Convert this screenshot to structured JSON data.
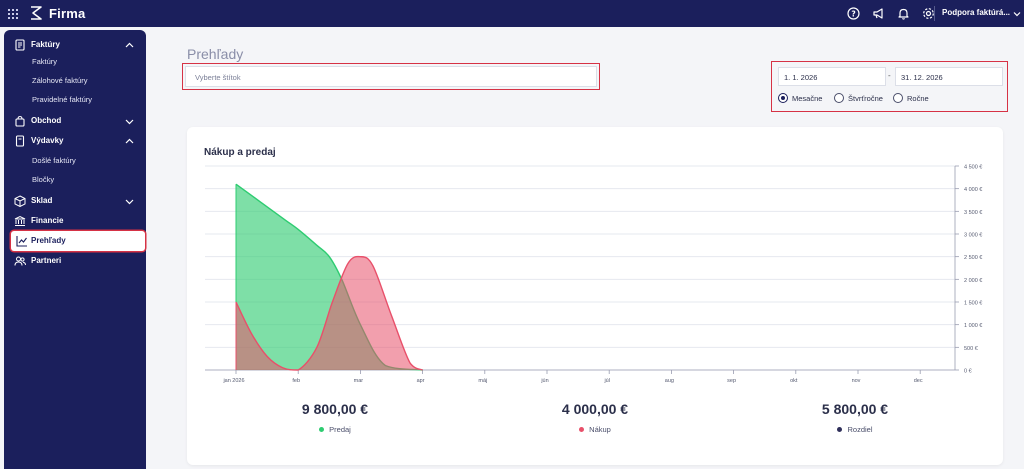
{
  "topbar": {
    "brand": "Firma",
    "org_name": "Podpora faktúrá...",
    "icons": [
      "help-icon",
      "megaphone-icon",
      "bell-icon",
      "gear-icon",
      "chevron-down-icon"
    ]
  },
  "sidebar": {
    "sections": [
      {
        "label": "Faktúry",
        "icon": "invoice-icon",
        "expanded": true,
        "items": [
          "Faktúry",
          "Zálohové faktúry",
          "Pravidelné faktúry"
        ]
      },
      {
        "label": "Obchod",
        "icon": "shopping-bag-icon",
        "expanded": false,
        "items": []
      },
      {
        "label": "Výdavky",
        "icon": "receipt-icon",
        "expanded": true,
        "items": [
          "Došlé faktúry",
          "Bločky"
        ]
      },
      {
        "label": "Sklad",
        "icon": "box-icon",
        "expanded": false,
        "items": []
      },
      {
        "label": "Financie",
        "icon": "bank-icon",
        "items": []
      },
      {
        "label": "Prehľady",
        "icon": "chart-line-icon",
        "active": true,
        "items": []
      },
      {
        "label": "Partneri",
        "icon": "people-icon",
        "items": []
      }
    ]
  },
  "main": {
    "title": "Prehľady",
    "tag_placeholder": "Vyberte štítok",
    "date_from": "1. 1. 2026",
    "date_separator": "-",
    "date_to": "31. 12. 2026",
    "periods": [
      {
        "label": "Mesačne",
        "selected": true
      },
      {
        "label": "Štvrťročne",
        "selected": false
      },
      {
        "label": "Ročne",
        "selected": false
      }
    ]
  },
  "colors": {
    "sidebar_bg": "#1b1f5c",
    "predaj": "#2ecc71",
    "nakup": "#e8506a",
    "rozdiel": "#2f2f5a",
    "highlight": "#d63245"
  },
  "chart_data": {
    "type": "area",
    "title": "Nákup a predaj",
    "categories": [
      "jan 2026",
      "feb",
      "mar",
      "apr",
      "máj",
      "jún",
      "júl",
      "aug",
      "sep",
      "okt",
      "nov",
      "dec"
    ],
    "y_ticks": [
      "4 500 €",
      "4 000 €",
      "3 500 €",
      "3 000 €",
      "2 500 €",
      "2 000 €",
      "1 500 €",
      "1 000 €",
      "500 €",
      "0 €"
    ],
    "ylim": [
      0,
      4500
    ],
    "grid": true,
    "y_axis_side": "right",
    "series": [
      {
        "name": "Predaj",
        "color": "#2ecc71",
        "x": [
          0,
          0.4,
          0.8,
          1.0,
          1.3,
          1.5,
          1.7,
          2.0,
          2.4,
          3.0
        ],
        "values": [
          4100,
          3700,
          3300,
          3100,
          2750,
          2500,
          2000,
          1000,
          100,
          0
        ]
      },
      {
        "name": "Nákup",
        "color": "#e8506a",
        "x": [
          0,
          0.25,
          0.5,
          0.75,
          1.0,
          1.3,
          1.55,
          1.8,
          2.0,
          2.2,
          2.5,
          2.8,
          3.0
        ],
        "values": [
          1500,
          800,
          300,
          50,
          0,
          500,
          1500,
          2350,
          2500,
          2300,
          1200,
          150,
          0
        ]
      }
    ]
  },
  "totals": [
    {
      "value": "9 800,00 €",
      "label": "Predaj",
      "color": "#2ecc71"
    },
    {
      "value": "4 000,00 €",
      "label": "Nákup",
      "color": "#e8506a"
    },
    {
      "value": "5 800,00 €",
      "label": "Rozdiel",
      "color": "#2f2f5a"
    }
  ]
}
